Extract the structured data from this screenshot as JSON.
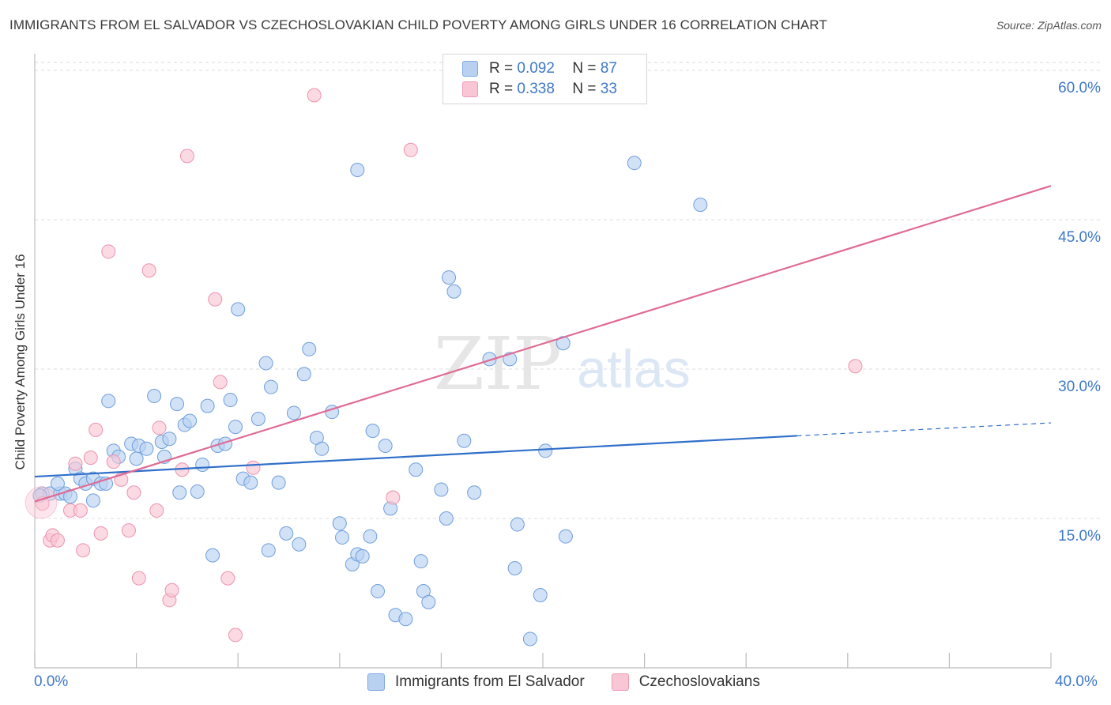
{
  "title": "IMMIGRANTS FROM EL SALVADOR VS CZECHOSLOVAKIAN CHILD POVERTY AMONG GIRLS UNDER 16 CORRELATION CHART",
  "source": "Source: ZipAtlas.com",
  "watermark": {
    "zip": "ZIP",
    "atlas": "atlas"
  },
  "legend": {
    "r_label": "R =",
    "n_label": "N =",
    "rows": [
      {
        "r": "0.092",
        "n": "87",
        "color": "#b8d1f1",
        "border": "#7fa8e0"
      },
      {
        "r": "0.338",
        "n": "33",
        "color": "#f9c6d5",
        "border": "#ee9bb5"
      }
    ]
  },
  "x_axis": {
    "min_label": "0.0%",
    "max_label": "40.0%"
  },
  "chart_data": {
    "type": "scatter",
    "title": "IMMIGRANTS FROM EL SALVADOR VS CZECHOSLOVAKIAN CHILD POVERTY AMONG GIRLS UNDER 16 CORRELATION CHART",
    "xlabel": "",
    "ylabel": "Child Poverty Among Girls Under 16",
    "xlim": [
      0,
      40
    ],
    "ylim": [
      0,
      60
    ],
    "y_ticks": [
      15,
      30,
      45,
      60
    ],
    "y_tick_labels": [
      "15.0%",
      "30.0%",
      "45.0%",
      "60.0%"
    ],
    "grid": true,
    "legend_position": "top-center",
    "series": [
      {
        "name": "Immigrants from El Salvador",
        "color": "#b8d1f1",
        "stroke": "#6f9fdc",
        "line_color": "#2f6fc9",
        "r": 0.092,
        "n": 87,
        "trend": {
          "x0": 0,
          "y0": 19.2,
          "x1": 30,
          "y1": 23.3,
          "dash_to_x": 40,
          "dash_to_y": 24.6
        },
        "points": [
          [
            0.3,
            17.5
          ],
          [
            0.6,
            17.5
          ],
          [
            1,
            17.5
          ],
          [
            1.2,
            17.5
          ],
          [
            0.9,
            18.5
          ],
          [
            1.6,
            20
          ],
          [
            1.8,
            19
          ],
          [
            2,
            18.5
          ],
          [
            2.3,
            19
          ],
          [
            2.3,
            16.8
          ],
          [
            2.6,
            18.5
          ],
          [
            2.8,
            18.5
          ],
          [
            2.9,
            26.8
          ],
          [
            3.1,
            21.8
          ],
          [
            3.3,
            21.2
          ],
          [
            3.8,
            22.5
          ],
          [
            4,
            21
          ],
          [
            4.1,
            22.3
          ],
          [
            4.4,
            22
          ],
          [
            4.7,
            27.3
          ],
          [
            5,
            22.7
          ],
          [
            5.1,
            21.2
          ],
          [
            5.3,
            23
          ],
          [
            5.6,
            26.5
          ],
          [
            5.7,
            17.6
          ],
          [
            5.9,
            24.4
          ],
          [
            6.1,
            24.8
          ],
          [
            6.4,
            17.7
          ],
          [
            6.6,
            20.4
          ],
          [
            6.8,
            26.3
          ],
          [
            7,
            11.3
          ],
          [
            7.2,
            22.3
          ],
          [
            7.5,
            22.5
          ],
          [
            7.7,
            26.9
          ],
          [
            7.9,
            24.2
          ],
          [
            8,
            36
          ],
          [
            8.2,
            19
          ],
          [
            8.5,
            18.6
          ],
          [
            8.8,
            25
          ],
          [
            9.1,
            30.6
          ],
          [
            9.2,
            11.8
          ],
          [
            9.3,
            28.2
          ],
          [
            9.6,
            18.6
          ],
          [
            9.9,
            13.5
          ],
          [
            10.2,
            25.6
          ],
          [
            10.4,
            12.4
          ],
          [
            10.6,
            29.5
          ],
          [
            10.8,
            32
          ],
          [
            11.1,
            23.1
          ],
          [
            11.3,
            22
          ],
          [
            11.7,
            25.7
          ],
          [
            12,
            14.5
          ],
          [
            12.1,
            13.1
          ],
          [
            12.5,
            10.4
          ],
          [
            12.7,
            11.4
          ],
          [
            12.9,
            11.2
          ],
          [
            12.7,
            50
          ],
          [
            13.2,
            13.2
          ],
          [
            13.3,
            23.8
          ],
          [
            13.5,
            7.7
          ],
          [
            13.8,
            22.3
          ],
          [
            14,
            16
          ],
          [
            14.2,
            5.3
          ],
          [
            14.6,
            4.9
          ],
          [
            15,
            19.9
          ],
          [
            15.2,
            10.7
          ],
          [
            15.3,
            7.7
          ],
          [
            15.5,
            6.6
          ],
          [
            16,
            17.9
          ],
          [
            16.2,
            15
          ],
          [
            16.3,
            39.2
          ],
          [
            16.5,
            37.8
          ],
          [
            16.9,
            22.8
          ],
          [
            17.3,
            17.6
          ],
          [
            17.9,
            31
          ],
          [
            18.7,
            31
          ],
          [
            18.9,
            10
          ],
          [
            19,
            14.4
          ],
          [
            19.5,
            2.9
          ],
          [
            19.9,
            7.3
          ],
          [
            20.1,
            21.8
          ],
          [
            20.8,
            32.6
          ],
          [
            20.9,
            13.2
          ],
          [
            23.6,
            50.7
          ],
          [
            26.2,
            46.5
          ],
          [
            0.2,
            17.3
          ],
          [
            1.4,
            17.2
          ]
        ]
      },
      {
        "name": "Czechoslovakians",
        "color": "#f9c6d5",
        "stroke": "#ec93ae",
        "line_color": "#e06b95",
        "r": 0.338,
        "n": 33,
        "trend": {
          "x0": 0,
          "y0": 16.7,
          "x1": 40,
          "y1": 48.4
        },
        "points": [
          [
            0.3,
            16.5
          ],
          [
            0.6,
            12.8
          ],
          [
            0.7,
            13.3
          ],
          [
            0.9,
            12.8
          ],
          [
            1.4,
            15.8
          ],
          [
            1.6,
            20.5
          ],
          [
            1.8,
            15.8
          ],
          [
            1.9,
            11.8
          ],
          [
            2.2,
            21.1
          ],
          [
            2.4,
            23.9
          ],
          [
            2.6,
            13.5
          ],
          [
            2.9,
            41.8
          ],
          [
            3.1,
            20.7
          ],
          [
            3.4,
            18.9
          ],
          [
            3.7,
            13.8
          ],
          [
            3.9,
            17.6
          ],
          [
            4.1,
            9
          ],
          [
            4.5,
            39.9
          ],
          [
            4.8,
            15.8
          ],
          [
            4.9,
            24.1
          ],
          [
            5.3,
            6.8
          ],
          [
            5.4,
            7.8
          ],
          [
            5.8,
            19.9
          ],
          [
            6,
            51.4
          ],
          [
            7.1,
            37
          ],
          [
            7.3,
            28.7
          ],
          [
            7.6,
            9
          ],
          [
            7.9,
            3.3
          ],
          [
            8.6,
            20.1
          ],
          [
            11,
            57.5
          ],
          [
            14.1,
            17.1
          ],
          [
            14.8,
            52
          ],
          [
            32.3,
            30.3
          ]
        ]
      }
    ]
  }
}
